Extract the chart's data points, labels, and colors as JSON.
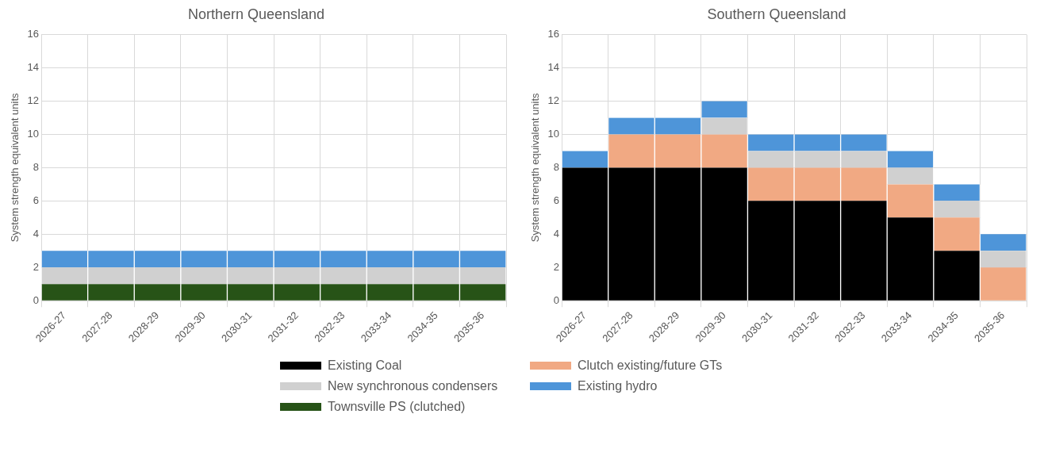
{
  "chart_data": [
    {
      "type": "bar",
      "title": "Northern Queensland",
      "ylabel": "System strength equivalent units",
      "stacked": true,
      "grid": true,
      "legend": "bottom",
      "categories": [
        "2026-27",
        "2027-28",
        "2028-29",
        "2029-30",
        "2030-31",
        "2031-32",
        "2032-33",
        "2033-34",
        "2034-35",
        "2035-36"
      ],
      "ylim": [
        0,
        16
      ],
      "yticks": [
        0,
        2,
        4,
        6,
        8,
        10,
        12,
        14,
        16
      ],
      "series": [
        {
          "name": "Townsville PS (clutched)",
          "color": "#275317",
          "values": [
            1,
            1,
            1,
            1,
            1,
            1,
            1,
            1,
            1,
            1
          ]
        },
        {
          "name": "New synchronous condensers",
          "color": "#d0d0d0",
          "values": [
            1,
            1,
            1,
            1,
            1,
            1,
            1,
            1,
            1,
            1
          ]
        },
        {
          "name": "Existing hydro",
          "color": "#4e95d9",
          "values": [
            1,
            1,
            1,
            1,
            1,
            1,
            1,
            1,
            1,
            1
          ]
        }
      ]
    },
    {
      "type": "bar",
      "title": "Southern Queensland",
      "ylabel": "System strength equivalent units",
      "stacked": true,
      "grid": true,
      "legend": "bottom",
      "categories": [
        "2026-27",
        "2027-28",
        "2028-29",
        "2029-30",
        "2030-31",
        "2031-32",
        "2032-33",
        "2033-34",
        "2034-35",
        "2035-36"
      ],
      "ylim": [
        0,
        16
      ],
      "yticks": [
        0,
        2,
        4,
        6,
        8,
        10,
        12,
        14,
        16
      ],
      "series": [
        {
          "name": "Existing Coal",
          "color": "#000000",
          "values": [
            8,
            8,
            8,
            8,
            6,
            6,
            6,
            5,
            3,
            0
          ]
        },
        {
          "name": "Clutch existing/future GTs",
          "color": "#f1a983",
          "values": [
            0,
            2,
            2,
            2,
            2,
            2,
            2,
            2,
            2,
            2
          ]
        },
        {
          "name": "New synchronous condensers",
          "color": "#d0d0d0",
          "values": [
            0,
            0,
            0,
            1,
            1,
            1,
            1,
            1,
            1,
            1
          ]
        },
        {
          "name": "Existing hydro",
          "color": "#4e95d9",
          "values": [
            1,
            1,
            1,
            1,
            1,
            1,
            1,
            1,
            1,
            1
          ]
        }
      ]
    }
  ]
}
